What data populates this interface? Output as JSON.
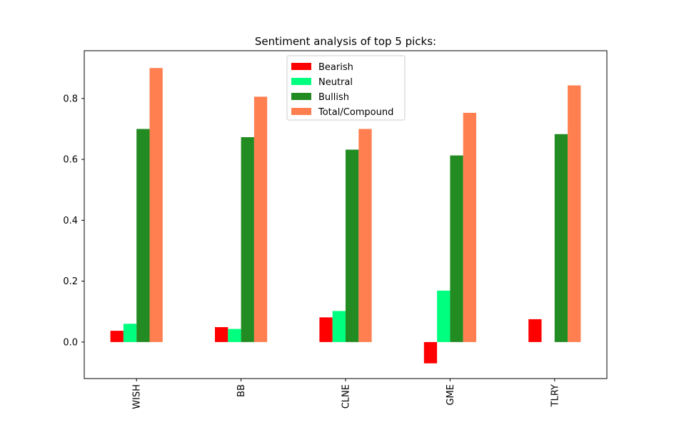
{
  "chart_data": {
    "type": "bar",
    "title": "Sentiment analysis of top 5 picks:",
    "xlabel": "",
    "ylabel": "",
    "categories": [
      "WISH",
      "BB",
      "CLNE",
      "GME",
      "TLRY"
    ],
    "series": [
      {
        "name": "Bearish",
        "color": "#ff0000",
        "values": [
          0.037,
          0.049,
          0.081,
          -0.07,
          0.075
        ]
      },
      {
        "name": "Neutral",
        "color": "#00ff7f",
        "values": [
          0.06,
          0.043,
          0.102,
          0.169,
          0.0
        ]
      },
      {
        "name": "Bullish",
        "color": "#228b22",
        "values": [
          0.7,
          0.673,
          0.632,
          0.613,
          0.683
        ]
      },
      {
        "name": "Total/Compound",
        "color": "#ff7f50",
        "values": [
          0.9,
          0.806,
          0.7,
          0.753,
          0.843
        ]
      }
    ],
    "ylim": [
      -0.12,
      0.957
    ],
    "yticks": [
      0.0,
      0.2,
      0.4,
      0.6,
      0.8
    ],
    "ytick_labels": [
      "0.0",
      "0.2",
      "0.4",
      "0.6",
      "0.8"
    ],
    "grid": false,
    "legend_position": "top-center"
  }
}
